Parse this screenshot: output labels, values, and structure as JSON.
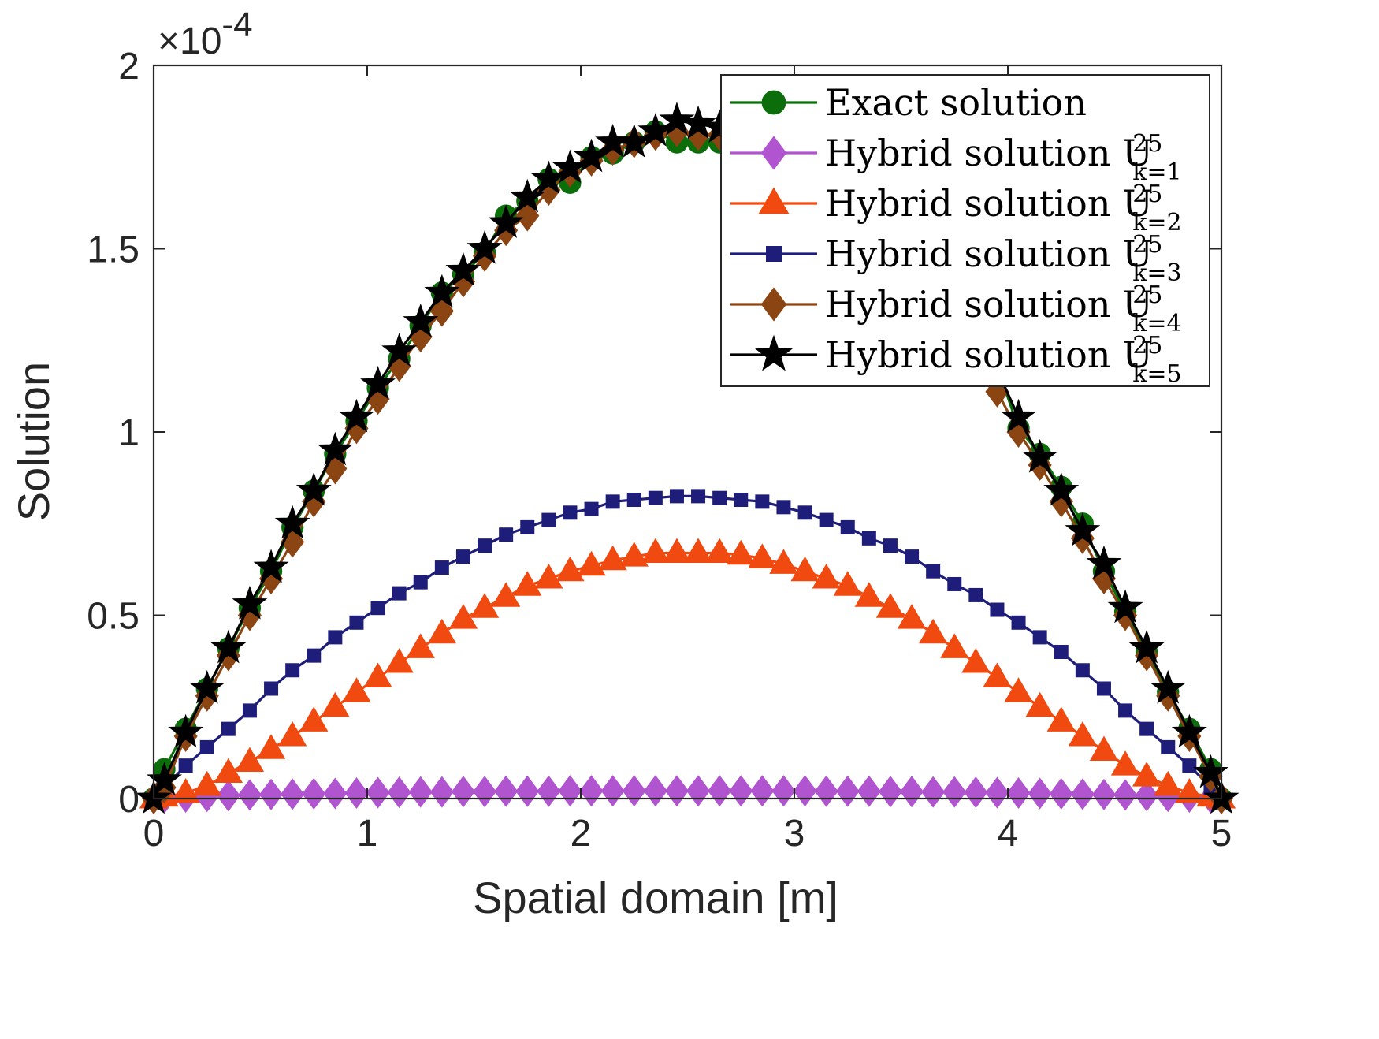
{
  "chart_data": {
    "type": "line",
    "xlabel": "Spatial domain [m]",
    "ylabel": "Solution",
    "exponent_label": "×10",
    "exponent_power": "-4",
    "xlim": [
      0,
      5
    ],
    "ylim": [
      0,
      2
    ],
    "x_ticks": [
      0,
      1,
      2,
      3,
      4,
      5
    ],
    "x_tick_labels": [
      "0",
      "1",
      "2",
      "3",
      "4",
      "5"
    ],
    "y_ticks": [
      0,
      0.5,
      1,
      1.5,
      2
    ],
    "y_tick_labels": [
      "0",
      "0.5",
      "1",
      "1.5",
      "2"
    ],
    "grid": false,
    "legend_position": "top-right",
    "x": [
      0,
      0.05,
      0.15,
      0.25,
      0.35,
      0.45,
      0.55,
      0.65,
      0.75,
      0.85,
      0.95,
      1.05,
      1.15,
      1.25,
      1.35,
      1.45,
      1.55,
      1.65,
      1.75,
      1.85,
      1.95,
      2.05,
      2.15,
      2.25,
      2.35,
      2.45,
      2.55,
      2.65,
      2.75,
      2.85,
      2.95,
      3.05,
      3.15,
      3.25,
      3.35,
      3.45,
      3.55,
      3.65,
      3.75,
      3.85,
      3.95,
      4.05,
      4.15,
      4.25,
      4.35,
      4.45,
      4.55,
      4.65,
      4.75,
      4.85,
      4.95,
      5
    ],
    "series": [
      {
        "name": "Exact solution",
        "color": "#0b6e0b",
        "marker": "circle",
        "values": [
          0,
          0.08,
          0.19,
          0.3,
          0.41,
          0.52,
          0.62,
          0.74,
          0.84,
          0.94,
          1.03,
          1.12,
          1.2,
          1.29,
          1.38,
          1.43,
          1.49,
          1.59,
          1.63,
          1.69,
          1.68,
          1.75,
          1.76,
          1.79,
          1.82,
          1.79,
          1.79,
          1.79,
          1.81,
          1.8,
          1.77,
          1.74,
          1.71,
          1.67,
          1.62,
          1.56,
          1.49,
          1.42,
          1.35,
          1.27,
          1.18,
          1.01,
          0.94,
          0.85,
          0.75,
          0.62,
          0.51,
          0.4,
          0.29,
          0.19,
          0.08,
          0
        ]
      },
      {
        "name": "Hybrid solution U",
        "sup": "25",
        "sub": "k=1",
        "color": "#b054d0",
        "marker": "diamond",
        "values": [
          0,
          0.002,
          0.004,
          0.006,
          0.008,
          0.01,
          0.011,
          0.012,
          0.013,
          0.014,
          0.015,
          0.016,
          0.017,
          0.018,
          0.018,
          0.019,
          0.019,
          0.02,
          0.02,
          0.02,
          0.021,
          0.021,
          0.021,
          0.021,
          0.021,
          0.021,
          0.021,
          0.021,
          0.021,
          0.021,
          0.021,
          0.021,
          0.02,
          0.02,
          0.02,
          0.019,
          0.019,
          0.018,
          0.018,
          0.017,
          0.016,
          0.015,
          0.014,
          0.013,
          0.012,
          0.011,
          0.01,
          0.008,
          0.006,
          0.004,
          0.002,
          0
        ]
      },
      {
        "name": "Hybrid solution U",
        "sup": "25",
        "sub": "k=2",
        "color": "#f04a10",
        "marker": "triangle",
        "values": [
          0,
          0.005,
          0.015,
          0.035,
          0.07,
          0.1,
          0.135,
          0.17,
          0.21,
          0.25,
          0.29,
          0.33,
          0.37,
          0.41,
          0.45,
          0.49,
          0.52,
          0.55,
          0.58,
          0.6,
          0.62,
          0.635,
          0.65,
          0.66,
          0.67,
          0.67,
          0.67,
          0.67,
          0.665,
          0.655,
          0.64,
          0.62,
          0.6,
          0.58,
          0.55,
          0.52,
          0.49,
          0.45,
          0.41,
          0.37,
          0.33,
          0.29,
          0.25,
          0.21,
          0.17,
          0.13,
          0.09,
          0.06,
          0.035,
          0.015,
          0.005,
          0
        ]
      },
      {
        "name": "Hybrid solution U",
        "sup": "25",
        "sub": "k=3",
        "color": "#1e1e7a",
        "marker": "square",
        "values": [
          0,
          0.03,
          0.09,
          0.14,
          0.19,
          0.24,
          0.3,
          0.35,
          0.39,
          0.44,
          0.48,
          0.52,
          0.56,
          0.59,
          0.63,
          0.66,
          0.69,
          0.72,
          0.74,
          0.76,
          0.78,
          0.79,
          0.81,
          0.815,
          0.82,
          0.825,
          0.825,
          0.82,
          0.815,
          0.81,
          0.795,
          0.78,
          0.76,
          0.74,
          0.71,
          0.69,
          0.66,
          0.62,
          0.585,
          0.555,
          0.515,
          0.48,
          0.44,
          0.4,
          0.35,
          0.3,
          0.24,
          0.19,
          0.14,
          0.09,
          0.03,
          0
        ]
      },
      {
        "name": "Hybrid solution U",
        "sup": "25",
        "sub": "k=4",
        "color": "#8b4513",
        "marker": "diamond",
        "values": [
          0,
          0.03,
          0.17,
          0.28,
          0.39,
          0.5,
          0.6,
          0.7,
          0.81,
          0.9,
          1.01,
          1.09,
          1.18,
          1.26,
          1.33,
          1.41,
          1.48,
          1.55,
          1.59,
          1.66,
          1.71,
          1.74,
          1.77,
          1.79,
          1.81,
          1.82,
          1.81,
          1.81,
          1.79,
          1.77,
          1.74,
          1.71,
          1.67,
          1.62,
          1.56,
          1.49,
          1.42,
          1.35,
          1.27,
          1.2,
          1.11,
          1.0,
          0.91,
          0.81,
          0.71,
          0.6,
          0.5,
          0.39,
          0.28,
          0.17,
          0.06,
          0
        ]
      },
      {
        "name": "Hybrid solution U",
        "sup": "25",
        "sub": "k=5",
        "color": "#000000",
        "marker": "star",
        "values": [
          0,
          0.05,
          0.18,
          0.3,
          0.41,
          0.53,
          0.63,
          0.75,
          0.84,
          0.95,
          1.04,
          1.13,
          1.22,
          1.3,
          1.38,
          1.44,
          1.5,
          1.57,
          1.64,
          1.69,
          1.72,
          1.75,
          1.79,
          1.79,
          1.82,
          1.85,
          1.84,
          1.83,
          1.82,
          1.8,
          1.77,
          1.74,
          1.71,
          1.67,
          1.62,
          1.56,
          1.49,
          1.42,
          1.35,
          1.27,
          1.17,
          1.04,
          0.93,
          0.84,
          0.73,
          0.64,
          0.52,
          0.41,
          0.3,
          0.18,
          0.07,
          0
        ]
      }
    ]
  }
}
